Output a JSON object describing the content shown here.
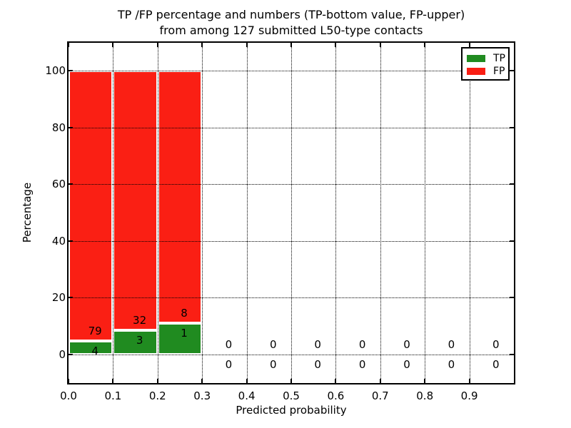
{
  "chart_data": {
    "type": "bar",
    "stacked": true,
    "title_line1": "TP /FP percentage and numbers (TP-bottom value, FP-upper)",
    "title_line2": "from among 127 submitted L50-type contacts",
    "xlabel": "Predicted probability",
    "ylabel": "Percentage",
    "total_submitted": 127,
    "xticks": [
      "0.0",
      "0.1",
      "0.2",
      "0.3",
      "0.4",
      "0.5",
      "0.6",
      "0.7",
      "0.8",
      "0.9"
    ],
    "yticks": [
      0,
      20,
      40,
      60,
      80,
      100
    ],
    "xlim": [
      0.0,
      1.0
    ],
    "ylim": [
      -10,
      110
    ],
    "grid": "dotted",
    "legend": [
      {
        "label": "TP",
        "color": "#208b20"
      },
      {
        "label": "FP",
        "color": "#fa1f14"
      }
    ],
    "colors": {
      "tp": "#208b20",
      "fp": "#fa1f14",
      "grid": "#000000",
      "bar_edge": "#ffffff",
      "text": "#000000",
      "background": "#ffffff"
    },
    "bins": [
      {
        "x_start": 0.0,
        "x_end": 0.1,
        "tp": 4,
        "fp": 79,
        "tp_pct": 4.8
      },
      {
        "x_start": 0.1,
        "x_end": 0.2,
        "tp": 3,
        "fp": 32,
        "tp_pct": 8.6
      },
      {
        "x_start": 0.2,
        "x_end": 0.3,
        "tp": 1,
        "fp": 8,
        "tp_pct": 11.1
      },
      {
        "x_start": 0.3,
        "x_end": 0.4,
        "tp": 0,
        "fp": 0,
        "tp_pct": 0
      },
      {
        "x_start": 0.4,
        "x_end": 0.5,
        "tp": 0,
        "fp": 0,
        "tp_pct": 0
      },
      {
        "x_start": 0.5,
        "x_end": 0.6,
        "tp": 0,
        "fp": 0,
        "tp_pct": 0
      },
      {
        "x_start": 0.6,
        "x_end": 0.7,
        "tp": 0,
        "fp": 0,
        "tp_pct": 0
      },
      {
        "x_start": 0.7,
        "x_end": 0.8,
        "tp": 0,
        "fp": 0,
        "tp_pct": 0
      },
      {
        "x_start": 0.8,
        "x_end": 0.9,
        "tp": 0,
        "fp": 0,
        "tp_pct": 0
      },
      {
        "x_start": 0.9,
        "x_end": 1.0,
        "tp": 0,
        "fp": 0,
        "tp_pct": 0
      }
    ]
  }
}
